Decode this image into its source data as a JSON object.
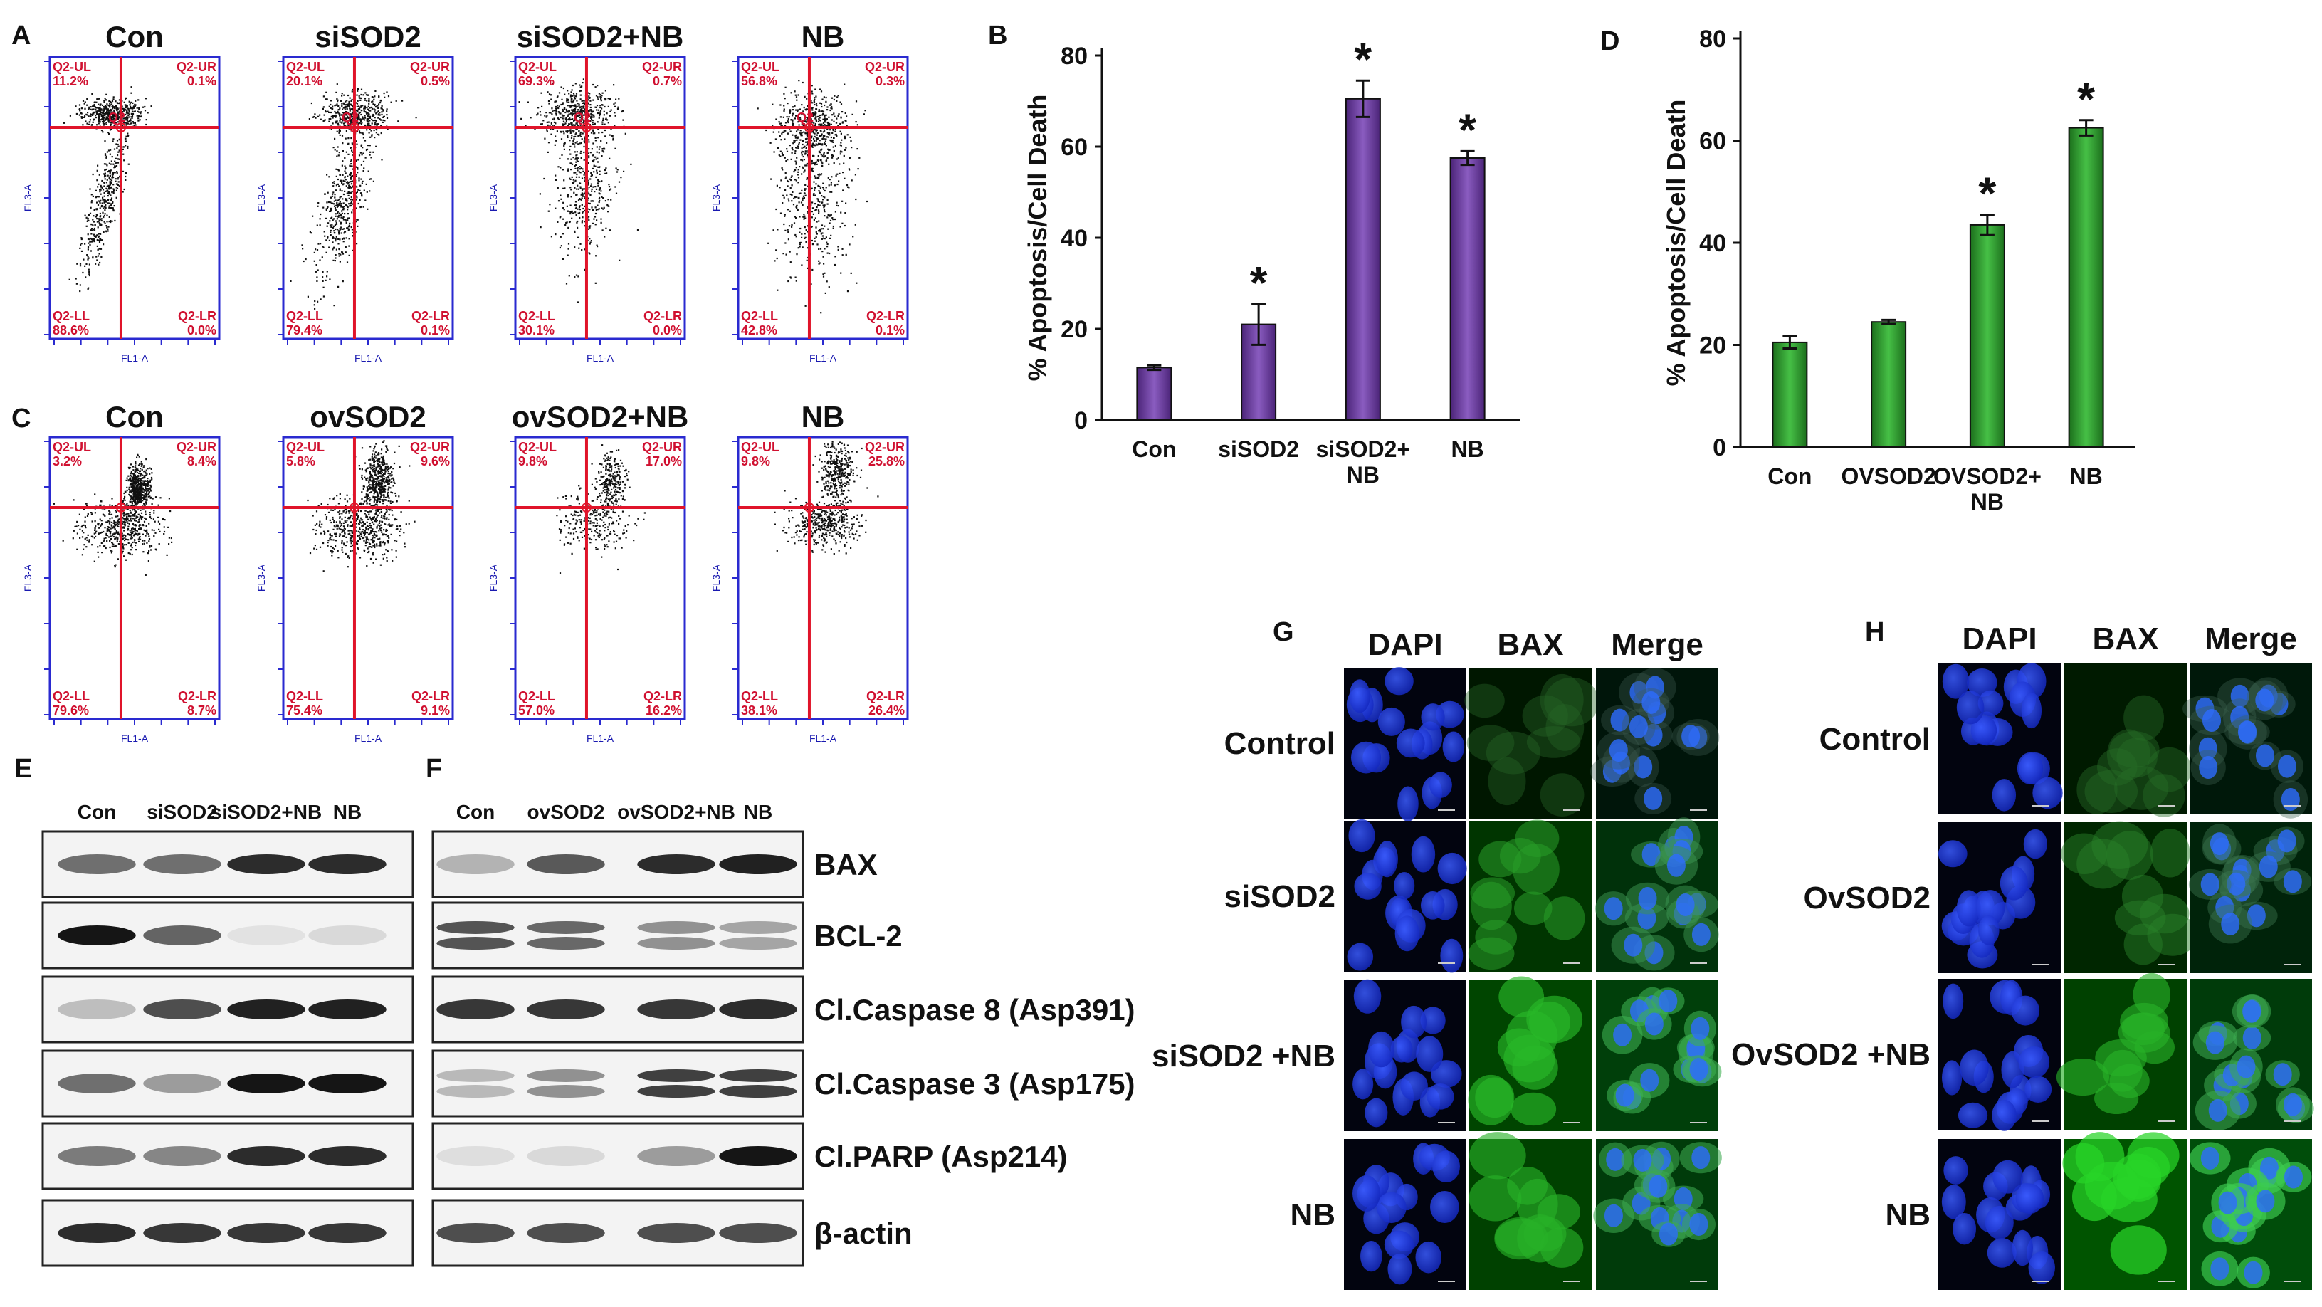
{
  "panels": {
    "A": {
      "label": "A",
      "plots": [
        {
          "title": "Con",
          "ul": "Q2-UL",
          "ul_val": "11.2%",
          "ur": "Q2-UR",
          "ur_val": "0.1%",
          "ll": "Q2-LL",
          "ll_val": "88.6%",
          "lr": "Q2-LR",
          "lr_val": "0.0%",
          "center": "Q2",
          "xlabel": "FL1-A",
          "ylabel": "FL3-A"
        },
        {
          "title": "siSOD2",
          "ul": "Q2-UL",
          "ul_val": "20.1%",
          "ur": "Q2-UR",
          "ur_val": "0.5%",
          "ll": "Q2-LL",
          "ll_val": "79.4%",
          "lr": "Q2-LR",
          "lr_val": "0.1%",
          "center": "Q2",
          "xlabel": "FL1-A",
          "ylabel": "FL3-A"
        },
        {
          "title": "siSOD2+NB",
          "ul": "Q2-UL",
          "ul_val": "69.3%",
          "ur": "Q2-UR",
          "ur_val": "0.7%",
          "ll": "Q2-LL",
          "ll_val": "30.1%",
          "lr": "Q2-LR",
          "lr_val": "0.0%",
          "center": "Q2",
          "xlabel": "FL1-A",
          "ylabel": "FL3-A"
        },
        {
          "title": "NB",
          "ul": "Q2-UL",
          "ul_val": "56.8%",
          "ur": "Q2-UR",
          "ur_val": "0.3%",
          "ll": "Q2-LL",
          "ll_val": "42.8%",
          "lr": "Q2-LR",
          "lr_val": "0.1%",
          "center": "Q2",
          "xlabel": "FL1-A",
          "ylabel": "FL3-A"
        }
      ]
    },
    "C": {
      "label": "C",
      "plots": [
        {
          "title": "Con",
          "ul": "Q2-UL",
          "ul_val": "3.2%",
          "ur": "Q2-UR",
          "ur_val": "8.4%",
          "ll": "Q2-LL",
          "ll_val": "79.6%",
          "lr": "Q2-LR",
          "lr_val": "8.7%",
          "center": "",
          "xlabel": "FL1-A",
          "ylabel": "FL3-A"
        },
        {
          "title": "ovSOD2",
          "ul": "Q2-UL",
          "ul_val": "5.8%",
          "ur": "Q2-UR",
          "ur_val": "9.6%",
          "ll": "Q2-LL",
          "ll_val": "75.4%",
          "lr": "Q2-LR",
          "lr_val": "9.1%",
          "center": "",
          "xlabel": "FL1-A",
          "ylabel": "FL3-A"
        },
        {
          "title": "ovSOD2+NB",
          "ul": "Q2-UL",
          "ul_val": "9.8%",
          "ur": "Q2-UR",
          "ur_val": "17.0%",
          "ll": "Q2-LL",
          "ll_val": "57.0%",
          "lr": "Q2-LR",
          "lr_val": "16.2%",
          "center": "",
          "xlabel": "FL1-A",
          "ylabel": "FL3-A"
        },
        {
          "title": "NB",
          "ul": "Q2-UL",
          "ul_val": "9.8%",
          "ur": "Q2-UR",
          "ur_val": "25.8%",
          "ll": "Q2-LL",
          "ll_val": "38.1%",
          "lr": "Q2-LR",
          "lr_val": "26.4%",
          "center": "",
          "xlabel": "FL1-A",
          "ylabel": "FL3-A"
        }
      ]
    },
    "E": {
      "label": "E",
      "lanes": [
        "Con",
        "siSOD2",
        "siSOD2+NB",
        "NB"
      ]
    },
    "F": {
      "label": "F",
      "lanes": [
        "Con",
        "ovSOD2",
        "ovSOD2+NB",
        "NB"
      ],
      "proteins": [
        "BAX",
        "BCL-2",
        "Cl.Caspase 8 (Asp391)",
        "Cl.Caspase 3 (Asp175)",
        "Cl.PARP (Asp214)",
        "β-actin"
      ]
    },
    "G": {
      "label": "G",
      "columns": [
        "DAPI",
        "BAX",
        "Merge"
      ],
      "rows": [
        "Control",
        "siSOD2",
        "siSOD2 +NB",
        "NB"
      ]
    },
    "H": {
      "label": "H",
      "columns": [
        "DAPI",
        "BAX",
        "Merge"
      ],
      "rows": [
        "Control",
        "OvSOD2",
        "OvSOD2 +NB",
        "NB"
      ]
    }
  },
  "colors": {
    "bar_B": "#6a3d9a",
    "bar_D": "#2f9a2f",
    "gate_line": "#e0142a",
    "plot_border": "#2a2ad0",
    "dapi": "#1f3ff0",
    "bax": "#3cc83c"
  },
  "chart_data": [
    {
      "panel": "B",
      "type": "bar",
      "categories": [
        "Con",
        "siSOD2",
        "siSOD2+\nNB",
        "NB"
      ],
      "values": [
        11.5,
        21,
        70.5,
        57.5
      ],
      "errors": [
        0.5,
        4.5,
        4,
        1.5
      ],
      "significant": [
        false,
        true,
        true,
        true
      ],
      "ylabel": "% Apoptosis/Cell Death",
      "ylim": [
        0,
        80
      ],
      "yticks": [
        0,
        20,
        40,
        60,
        80
      ]
    },
    {
      "panel": "D",
      "type": "bar",
      "categories": [
        "Con",
        "OVSOD2",
        "OVSOD2+\nNB",
        "NB"
      ],
      "values": [
        20.5,
        24.5,
        43.5,
        62.5
      ],
      "errors": [
        1.2,
        0.4,
        2,
        1.5
      ],
      "significant": [
        false,
        false,
        true,
        true
      ],
      "ylabel": "% Apoptosis/Cell Death",
      "ylim": [
        0,
        80
      ],
      "yticks": [
        0,
        20,
        40,
        60,
        80
      ]
    }
  ]
}
